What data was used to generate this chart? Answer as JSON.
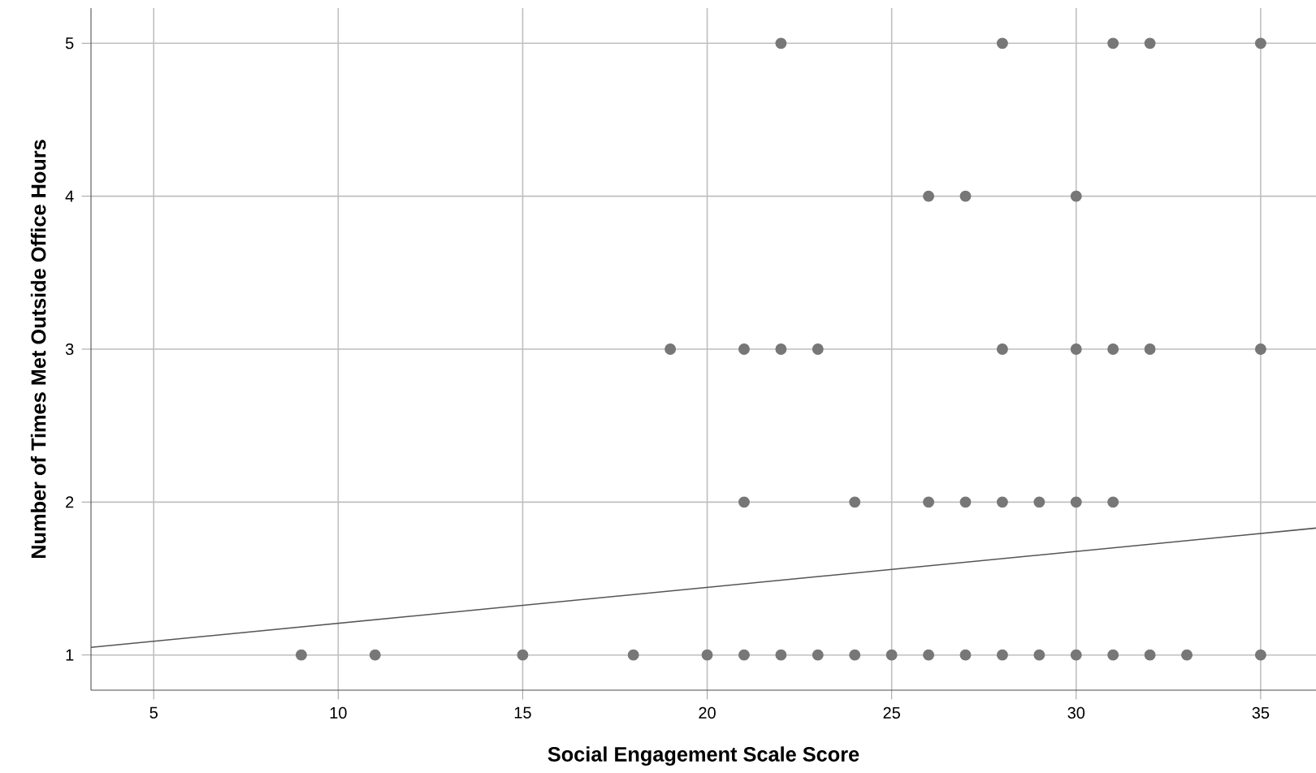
{
  "chart_data": {
    "type": "scatter",
    "xlabel": "Social Engagement Scale Score",
    "ylabel": "Number of Times Met Outside Office Hours",
    "xlim": [
      3.3,
      36.5
    ],
    "ylim": [
      0.77,
      5.23
    ],
    "xticks": [
      5,
      10,
      15,
      20,
      25,
      30,
      35
    ],
    "yticks": [
      1,
      2,
      3,
      4,
      5
    ],
    "grid": true,
    "marker": "circle",
    "series": [
      {
        "color": "#777777",
        "x": [
          22,
          28,
          31,
          32,
          35,
          26,
          27,
          30,
          19,
          21,
          22,
          23,
          28,
          30,
          31,
          32,
          35,
          21,
          24,
          26,
          27,
          28,
          29,
          30,
          31,
          9,
          11,
          15,
          18,
          20,
          21,
          22,
          23,
          24,
          25,
          26,
          27,
          28,
          29,
          30,
          31,
          32,
          33,
          35
        ],
        "values": [
          5,
          5,
          5,
          5,
          5,
          4,
          4,
          4,
          3,
          3,
          3,
          3,
          3,
          3,
          3,
          3,
          3,
          2,
          2,
          2,
          2,
          2,
          2,
          2,
          2,
          1,
          1,
          1,
          1,
          1,
          1,
          1,
          1,
          1,
          1,
          1,
          1,
          1,
          1,
          1,
          1,
          1,
          1,
          1
        ]
      },
      {
        "type": "line",
        "color": "#555555",
        "marker": "none",
        "x": [
          3.3,
          36.5
        ],
        "values": [
          1.05,
          1.83
        ]
      }
    ]
  }
}
